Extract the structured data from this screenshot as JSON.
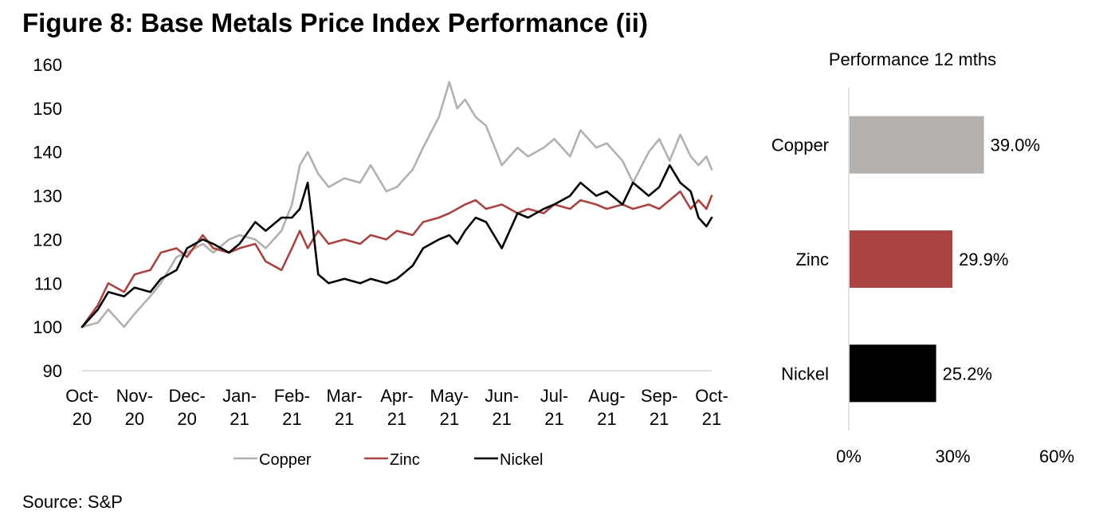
{
  "title": "Figure 8: Base Metals Price Index Performance (ii)",
  "source": "Source: S&P",
  "chart_data": [
    {
      "type": "line",
      "title": "",
      "xlabel": "",
      "ylabel": "",
      "ylim": [
        90,
        160
      ],
      "yticks": [
        "90",
        "100",
        "110",
        "120",
        "130",
        "140",
        "150",
        "160"
      ],
      "categories": [
        {
          "top": "Oct-",
          "bottom": "20"
        },
        {
          "top": "Nov-",
          "bottom": "20"
        },
        {
          "top": "Dec-",
          "bottom": "20"
        },
        {
          "top": "Jan-",
          "bottom": "21"
        },
        {
          "top": "Feb-",
          "bottom": "21"
        },
        {
          "top": "Mar-",
          "bottom": "21"
        },
        {
          "top": "Apr-",
          "bottom": "21"
        },
        {
          "top": "May-",
          "bottom": "21"
        },
        {
          "top": "Jun-",
          "bottom": "21"
        },
        {
          "top": "Jul-",
          "bottom": "21"
        },
        {
          "top": "Aug-",
          "bottom": "21"
        },
        {
          "top": "Sep-",
          "bottom": "21"
        },
        {
          "top": "Oct-",
          "bottom": "21"
        }
      ],
      "x": [
        0,
        0.3,
        0.5,
        0.8,
        1.0,
        1.3,
        1.5,
        1.8,
        2.0,
        2.3,
        2.5,
        2.8,
        3.0,
        3.3,
        3.5,
        3.8,
        4.0,
        4.15,
        4.3,
        4.5,
        4.7,
        5.0,
        5.3,
        5.5,
        5.8,
        6.0,
        6.3,
        6.5,
        6.8,
        7.0,
        7.15,
        7.3,
        7.5,
        7.7,
        8.0,
        8.3,
        8.5,
        8.8,
        9.0,
        9.3,
        9.5,
        9.8,
        10.0,
        10.3,
        10.5,
        10.8,
        11.0,
        11.2,
        11.4,
        11.6,
        11.75,
        11.9,
        12.0
      ],
      "series": [
        {
          "name": "Copper",
          "color": "#B3B0AE",
          "values": [
            100,
            101,
            104,
            100,
            103,
            107,
            110,
            116,
            117,
            119,
            117,
            120,
            121,
            120,
            118,
            122,
            128,
            137,
            140,
            135,
            132,
            134,
            133,
            137,
            131,
            132,
            136,
            141,
            148,
            156,
            150,
            152,
            148,
            146,
            137,
            141,
            139,
            141,
            143,
            139,
            145,
            141,
            142,
            138,
            133,
            140,
            143,
            138,
            144,
            139,
            137,
            139,
            136
          ]
        },
        {
          "name": "Zinc",
          "color": "#A94442",
          "values": [
            100,
            105,
            110,
            108,
            112,
            113,
            117,
            118,
            116,
            121,
            118,
            117,
            118,
            119,
            115,
            113,
            118,
            122,
            118,
            122,
            119,
            120,
            119,
            121,
            120,
            122,
            121,
            124,
            125,
            126,
            127,
            128,
            129,
            127,
            128,
            126,
            127,
            126,
            128,
            127,
            129,
            128,
            127,
            128,
            127,
            128,
            127,
            129,
            131,
            127,
            129,
            127,
            130
          ]
        },
        {
          "name": "Nickel",
          "color": "#000000",
          "values": [
            100,
            104,
            108,
            107,
            109,
            108,
            111,
            113,
            118,
            120,
            119,
            117,
            119,
            124,
            122,
            125,
            125,
            127,
            133,
            112,
            110,
            111,
            110,
            111,
            110,
            111,
            114,
            118,
            120,
            121,
            119,
            122,
            125,
            124,
            118,
            126,
            125,
            127,
            128,
            130,
            133,
            130,
            131,
            128,
            133,
            130,
            132,
            137,
            133,
            131,
            125,
            123,
            125
          ]
        }
      ],
      "legend_position": "bottom-center",
      "grid": false
    },
    {
      "type": "bar",
      "orientation": "horizontal",
      "title": "Performance 12 mths",
      "categories": [
        "Copper",
        "Zinc",
        "Nickel"
      ],
      "values": [
        39.0,
        29.9,
        25.2
      ],
      "value_labels": [
        "39.0%",
        "29.9%",
        "25.2%"
      ],
      "colors": [
        "#B3B0AE",
        "#A94442",
        "#000000"
      ],
      "xlim": [
        0,
        60
      ],
      "xticks": [
        {
          "value": 0,
          "label": "0%"
        },
        {
          "value": 30,
          "label": "30%"
        },
        {
          "value": 60,
          "label": "60%"
        }
      ],
      "grid": false
    }
  ]
}
